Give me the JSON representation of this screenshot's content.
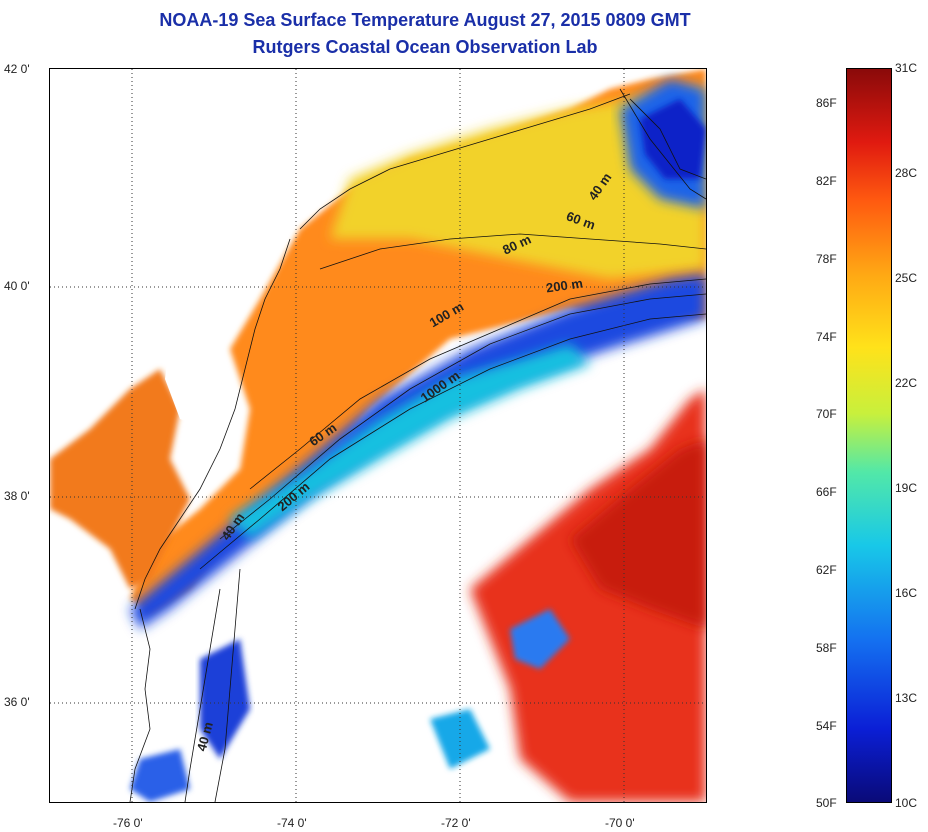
{
  "title": {
    "line1": "NOAA-19 Sea Surface Temperature August 27, 2015 0809 GMT",
    "line2": "Rutgers Coastal Ocean Observation Lab"
  },
  "map": {
    "lat_labels": [
      "42 0'",
      "40 0'",
      "38 0'",
      "36 0'"
    ],
    "lon_labels": [
      "-76 0'",
      "-74 0'",
      "-72 0'",
      "-70 0'"
    ],
    "contour_labels": [
      "40 m",
      "60 m",
      "80 m",
      "200 m",
      "100 m",
      "1000 m",
      "60 m",
      "200 m",
      "40 m",
      "40 m"
    ]
  },
  "colorbar": {
    "celsius_labels": [
      "31C",
      "28C",
      "25C",
      "22C",
      "19C",
      "16C",
      "13C",
      "10C"
    ],
    "fahrenheit_labels": [
      "86F",
      "82F",
      "78F",
      "74F",
      "70F",
      "66F",
      "62F",
      "58F",
      "54F",
      "50F"
    ],
    "colors": {
      "cold": "#0a0a78",
      "cool": "#18c8e8",
      "mid": "#ffe21a",
      "warm": "#ff5a10",
      "hot": "#8a0a0a"
    }
  }
}
